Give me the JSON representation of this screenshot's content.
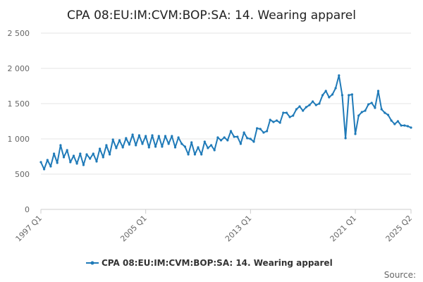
{
  "chart_data": {
    "type": "line",
    "title": "CPA 08:EU:IM:CVM:BOP:SA: 14. Wearing apparel",
    "xlabel": "",
    "ylabel": "",
    "ylim": [
      0,
      2500
    ],
    "yticks": [
      0,
      500,
      1000,
      1500,
      2000,
      2500
    ],
    "ytick_labels": [
      "0",
      "500",
      "1 000",
      "1 500",
      "2 000",
      "2 500"
    ],
    "xticks": [
      "1997 Q1",
      "2005 Q1",
      "2013 Q1",
      "2021 Q1",
      "2025 Q2"
    ],
    "grid": true,
    "legend_position": "bottom",
    "series": [
      {
        "name": "CPA 08:EU:IM:CVM:BOP:SA: 14. Wearing apparel",
        "color": "#1f7ab8",
        "start": "1997 Q1",
        "values": [
          670,
          570,
          700,
          610,
          790,
          660,
          910,
          740,
          840,
          670,
          760,
          650,
          790,
          630,
          780,
          720,
          790,
          680,
          860,
          740,
          910,
          780,
          990,
          870,
          980,
          880,
          1010,
          920,
          1060,
          910,
          1050,
          930,
          1040,
          880,
          1050,
          890,
          1040,
          890,
          1040,
          930,
          1040,
          880,
          1020,
          930,
          890,
          780,
          950,
          780,
          880,
          780,
          960,
          870,
          910,
          840,
          1020,
          980,
          1020,
          980,
          1110,
          1030,
          1030,
          930,
          1090,
          1010,
          1000,
          960,
          1150,
          1140,
          1090,
          1110,
          1270,
          1240,
          1260,
          1230,
          1370,
          1370,
          1310,
          1330,
          1420,
          1460,
          1400,
          1450,
          1480,
          1530,
          1480,
          1500,
          1620,
          1680,
          1590,
          1630,
          1720,
          1900,
          1620,
          1010,
          1620,
          1630,
          1070,
          1330,
          1380,
          1400,
          1490,
          1510,
          1440,
          1680,
          1420,
          1370,
          1340,
          1260,
          1210,
          1250,
          1190,
          1190,
          1180,
          1160
        ]
      }
    ],
    "legend": [
      "CPA 08:EU:IM:CVM:BOP:SA: 14. Wearing apparel"
    ],
    "annotations": [
      "Source:"
    ]
  }
}
